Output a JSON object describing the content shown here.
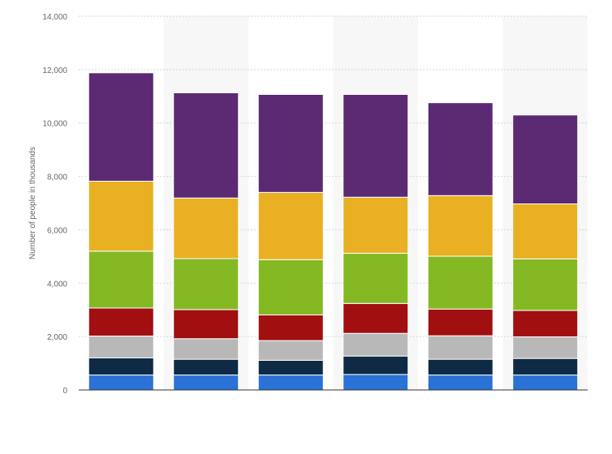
{
  "chart_data": {
    "type": "bar",
    "stacked": true,
    "title": "",
    "xlabel": "",
    "ylabel": "Number of people in thousands",
    "ylim": [
      0,
      14000
    ],
    "yticks": [
      0,
      2000,
      4000,
      6000,
      8000,
      10000,
      12000,
      14000
    ],
    "ytick_labels": [
      "0",
      "2,000",
      "4,000",
      "6,000",
      "8,000",
      "10,000",
      "12,000",
      "14,000"
    ],
    "grid": true,
    "legend": "none",
    "categories": [
      "",
      "",
      "",
      "",
      "",
      ""
    ],
    "series": [
      {
        "color": "#2a72d5",
        "values": [
          560,
          560,
          560,
          580,
          560,
          560
        ]
      },
      {
        "color": "#0f2a44",
        "values": [
          640,
          590,
          550,
          690,
          590,
          620
        ]
      },
      {
        "color": "#b8b8b8",
        "values": [
          820,
          770,
          740,
          850,
          880,
          810
        ]
      },
      {
        "color": "#a10f10",
        "values": [
          1050,
          1090,
          960,
          1120,
          1000,
          990
        ]
      },
      {
        "color": "#84b924",
        "values": [
          2130,
          1910,
          2070,
          1880,
          1980,
          1930
        ]
      },
      {
        "color": "#e8b022",
        "values": [
          2620,
          2270,
          2520,
          2100,
          2270,
          2060
        ]
      },
      {
        "color": "#5b2a73",
        "values": [
          4060,
          3940,
          3670,
          3850,
          3480,
          3330
        ]
      }
    ]
  }
}
